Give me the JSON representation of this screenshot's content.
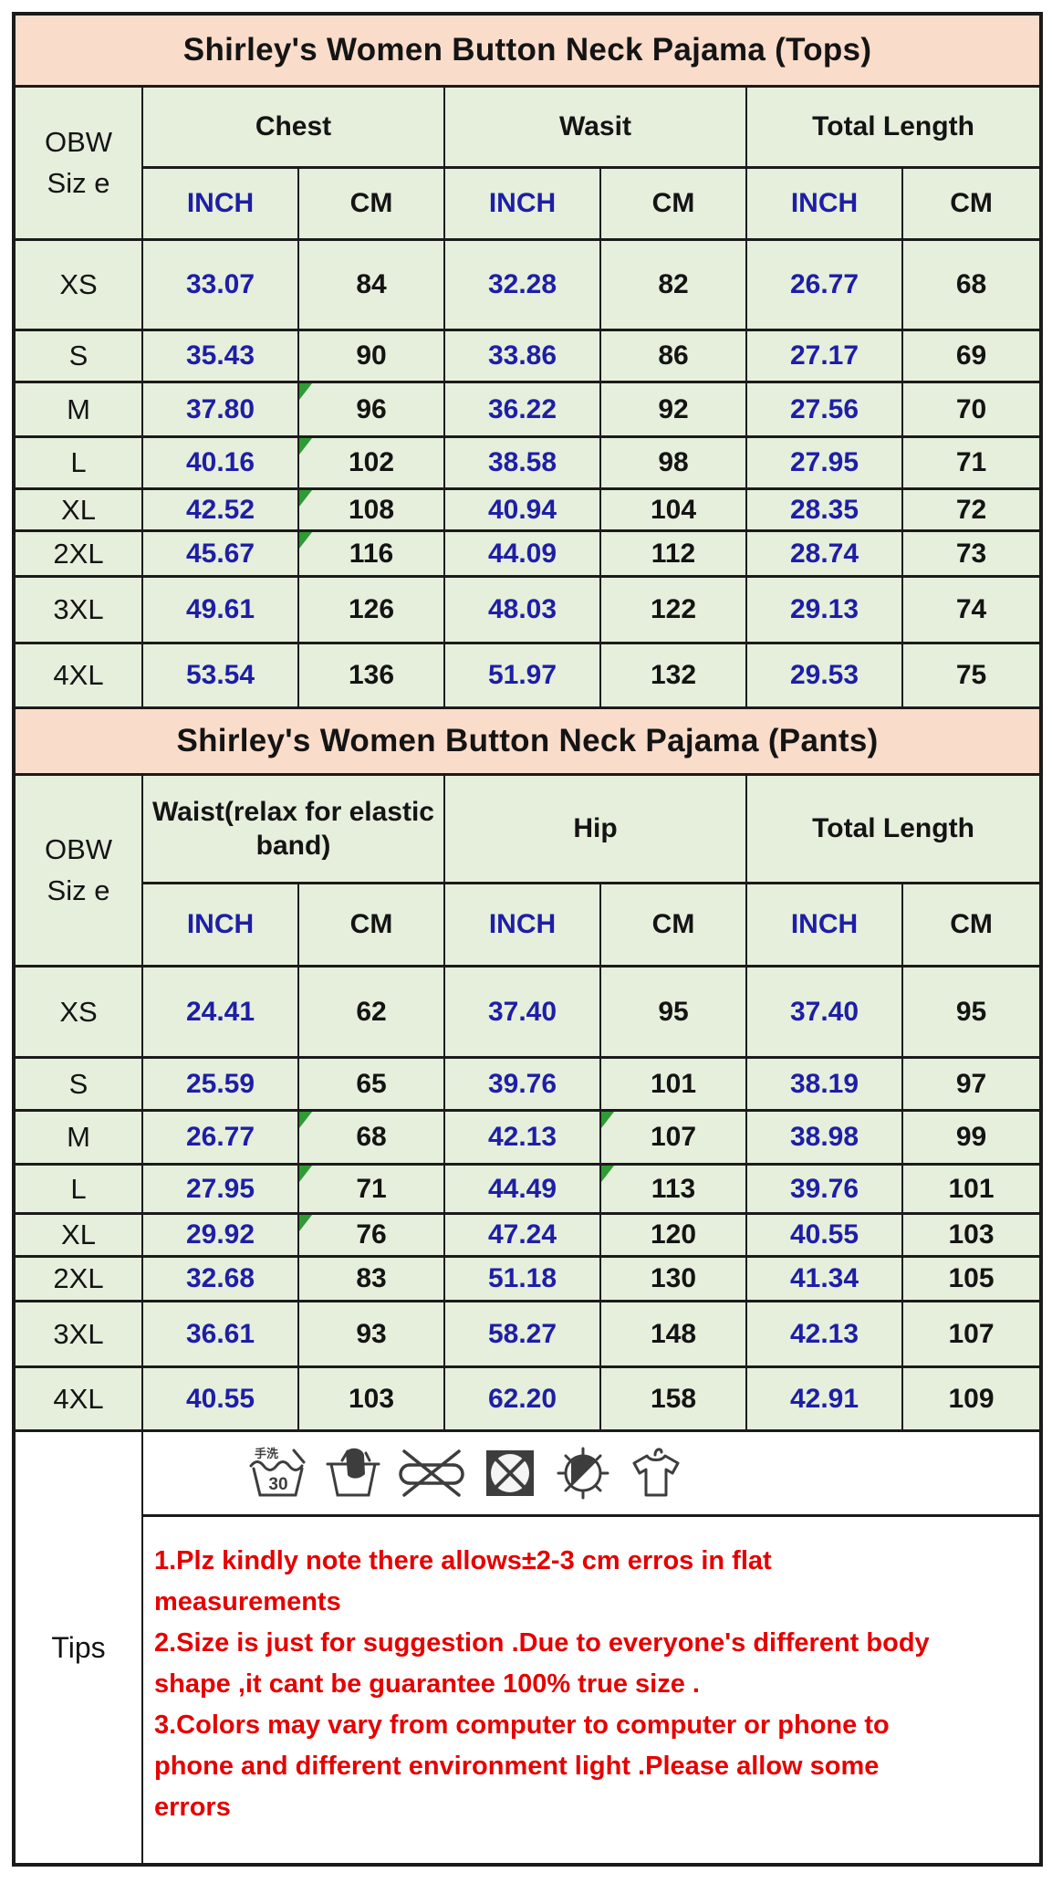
{
  "colors": {
    "title_bg": "#fadcca",
    "cell_bg": "#e5efdc",
    "border": "#1b1b1b",
    "inch_text": "#1e1ea6",
    "cm_text": "#141414",
    "tips_text": "#e60000",
    "marker_green": "#2e9b33",
    "footer_bg": "#ffffff"
  },
  "tops": {
    "title": "Shirley's Women Button Neck Pajama (Tops)",
    "size_header_lines": [
      "OBW",
      "Siz e"
    ],
    "groups": [
      "Chest",
      "Wasit",
      "Total Length"
    ],
    "unit_headers": [
      "INCH",
      "CM",
      "INCH",
      "CM",
      "INCH",
      "CM"
    ],
    "rows": [
      {
        "size": "XS",
        "values": [
          "33.07",
          "84",
          "32.28",
          "82",
          "26.77",
          "68"
        ],
        "markers": []
      },
      {
        "size": "S",
        "values": [
          "35.43",
          "90",
          "33.86",
          "86",
          "27.17",
          "69"
        ],
        "markers": []
      },
      {
        "size": "M",
        "values": [
          "37.80",
          "96",
          "36.22",
          "92",
          "27.56",
          "70"
        ],
        "markers": [
          1
        ]
      },
      {
        "size": "L",
        "values": [
          "40.16",
          "102",
          "38.58",
          "98",
          "27.95",
          "71"
        ],
        "markers": [
          1
        ]
      },
      {
        "size": "XL",
        "values": [
          "42.52",
          "108",
          "40.94",
          "104",
          "28.35",
          "72"
        ],
        "markers": [
          1
        ]
      },
      {
        "size": "2XL",
        "values": [
          "45.67",
          "116",
          "44.09",
          "112",
          "28.74",
          "73"
        ],
        "markers": [
          1
        ]
      },
      {
        "size": "3XL",
        "values": [
          "49.61",
          "126",
          "48.03",
          "122",
          "29.13",
          "74"
        ],
        "markers": []
      },
      {
        "size": "4XL",
        "values": [
          "53.54",
          "136",
          "51.97",
          "132",
          "29.53",
          "75"
        ],
        "markers": []
      }
    ]
  },
  "pants": {
    "title": "Shirley's Women Button Neck Pajama (Pants)",
    "size_header_lines": [
      "OBW",
      "Siz e"
    ],
    "groups": [
      "Waist(relax for elastic band)",
      "Hip",
      "Total Length"
    ],
    "unit_headers": [
      "INCH",
      "CM",
      "INCH",
      "CM",
      "INCH",
      "CM"
    ],
    "rows": [
      {
        "size": "XS",
        "values": [
          "24.41",
          "62",
          "37.40",
          "95",
          "37.40",
          "95"
        ],
        "markers": []
      },
      {
        "size": "S",
        "values": [
          "25.59",
          "65",
          "39.76",
          "101",
          "38.19",
          "97"
        ],
        "markers": []
      },
      {
        "size": "M",
        "values": [
          "26.77",
          "68",
          "42.13",
          "107",
          "38.98",
          "99"
        ],
        "markers": [
          1,
          3
        ]
      },
      {
        "size": "L",
        "values": [
          "27.95",
          "71",
          "44.49",
          "113",
          "39.76",
          "101"
        ],
        "markers": [
          1,
          3
        ]
      },
      {
        "size": "XL",
        "values": [
          "29.92",
          "76",
          "47.24",
          "120",
          "40.55",
          "103"
        ],
        "markers": [
          1
        ]
      },
      {
        "size": "2XL",
        "values": [
          "32.68",
          "83",
          "51.18",
          "130",
          "41.34",
          "105"
        ],
        "markers": []
      },
      {
        "size": "3XL",
        "values": [
          "36.61",
          "93",
          "58.27",
          "148",
          "42.13",
          "107"
        ],
        "markers": []
      },
      {
        "size": "4XL",
        "values": [
          "40.55",
          "103",
          "62.20",
          "158",
          "42.91",
          "109"
        ],
        "markers": []
      }
    ]
  },
  "footer": {
    "tips_label": "Tips",
    "care_wash_temp": "30",
    "care_wash_label": "手洗",
    "care_icons": [
      "hand-wash-30-icon",
      "hand-wash-icon",
      "do-not-wring-icon",
      "do-not-tumble-dry-icon",
      "do-not-sun-dry-icon",
      "hang-dry-icon"
    ],
    "tips": [
      "1.Plz kindly note there allows±2-3 cm erros in flat measurements",
      "2.Size is just for suggestion .Due to everyone's different body shape ,it cant be guarantee 100% true size .",
      "3.Colors may  vary from computer to computer or phone to phone and different environment light .Please allow some errors"
    ]
  }
}
